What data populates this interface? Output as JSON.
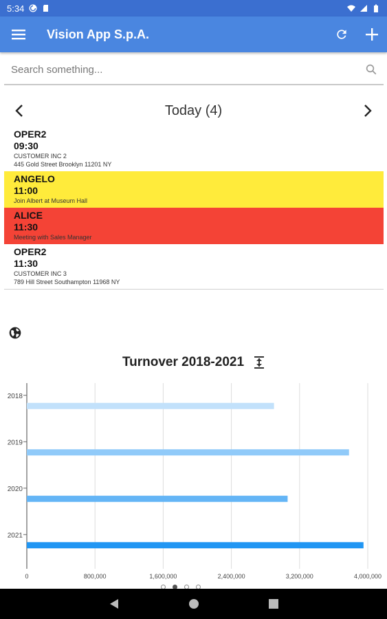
{
  "status_bar": {
    "time": "5:34"
  },
  "app_bar": {
    "title": "Vision App S.p.A."
  },
  "search": {
    "placeholder": "Search something..."
  },
  "day_nav": {
    "title": "Today (4)"
  },
  "appointments": [
    {
      "name": "OPER2",
      "time": "09:30",
      "lines": [
        "CUSTOMER INC 2",
        "445 Gold Street Brooklyn 11201 NY"
      ],
      "color": "#ffffff"
    },
    {
      "name": "ANGELO",
      "time": "11:00",
      "lines": [
        "Join Albert at Museum Hall"
      ],
      "color": "#ffeb3b"
    },
    {
      "name": "ALICE",
      "time": "11:30",
      "lines": [
        "Meeting with Sales Manager"
      ],
      "color": "#f44336"
    },
    {
      "name": "OPER2",
      "time": "11:30",
      "lines": [
        "CUSTOMER INC 3",
        "789 Hill Street Southampton 11968 NY"
      ],
      "color": "#ffffff"
    }
  ],
  "chart_data": {
    "type": "bar",
    "orientation": "horizontal",
    "title": "Turnover 2018-2021",
    "categories": [
      "2018",
      "2019",
      "2020",
      "2021"
    ],
    "values": [
      2900000,
      3780000,
      3060000,
      3950000
    ],
    "bar_colors": [
      "#c2e1fb",
      "#90caf9",
      "#64b5f6",
      "#2196f3"
    ],
    "xlim": [
      0,
      4000000
    ],
    "xticks": [
      0,
      800000,
      1600000,
      2400000,
      3200000,
      4000000
    ],
    "xtick_labels": [
      "0",
      "800,000",
      "1,600,000",
      "2,400,000",
      "3,200,000",
      "4,000,000"
    ],
    "grid": true
  },
  "pager": {
    "count": 4,
    "active": 1
  }
}
